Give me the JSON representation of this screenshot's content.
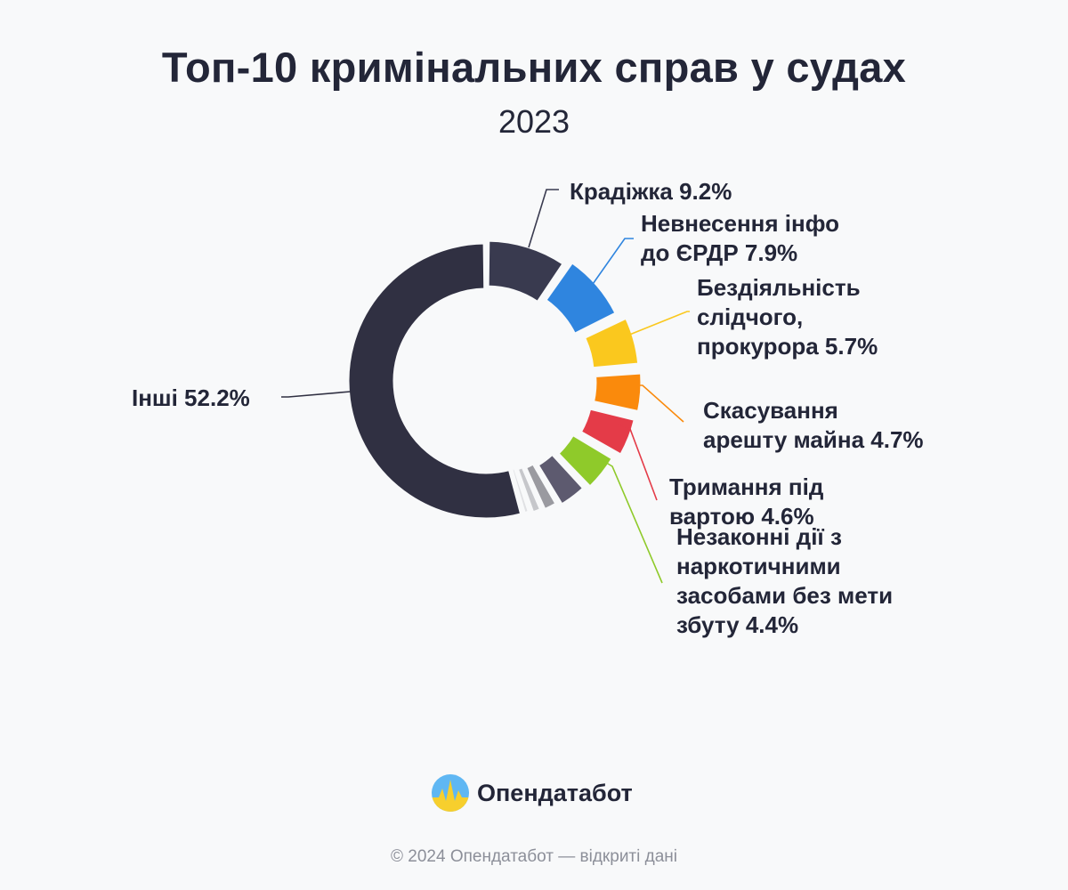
{
  "header": {
    "title": "Топ-10 кримінальних справ у судах",
    "subtitle": "2023"
  },
  "chart_data": {
    "type": "pie",
    "donut": true,
    "title": "Топ-10 кримінальних справ у судах",
    "subtitle": "2023",
    "slices": [
      {
        "label": "Крадіжка",
        "value": 9.2,
        "color": "#393a4f",
        "label_lines": [
          "Крадіжка 9.2%"
        ]
      },
      {
        "label": "Невнесення інфо до ЄРДР",
        "value": 7.9,
        "color": "#2f85df",
        "label_lines": [
          "Невнесення інфо",
          "до ЄРДР 7.9%"
        ]
      },
      {
        "label": "Бездіяльність слідчого, прокурора",
        "value": 5.7,
        "color": "#fac81e",
        "label_lines": [
          "Бездіяльність",
          "слідчого,",
          "прокурора 5.7%"
        ]
      },
      {
        "label": "Скасування арешту майна",
        "value": 4.7,
        "color": "#fa8a0c",
        "label_lines": [
          "Скасування",
          "арешту майна 4.7%"
        ]
      },
      {
        "label": "Тримання під вартою",
        "value": 4.6,
        "color": "#e43b48",
        "label_lines": [
          "Тримання під",
          "вартою 4.6%"
        ]
      },
      {
        "label": "Незаконні дії з наркотичними засобами без мети збуту",
        "value": 4.4,
        "color": "#8fca2a",
        "label_lines": [
          "Незаконні дії з",
          "наркотичними",
          "засобами без мети",
          "збуту 4.4%"
        ]
      },
      {
        "label": "",
        "value": 3.4,
        "color": "#5d5a6f",
        "label_lines": []
      },
      {
        "label": "",
        "value": 1.8,
        "color": "#9a9aa0",
        "label_lines": []
      },
      {
        "label": "",
        "value": 1.3,
        "color": "#c6c7cb",
        "label_lines": []
      },
      {
        "label": "",
        "value": 0.9,
        "color": "#e0e1e4",
        "label_lines": []
      },
      {
        "label": "Інші",
        "value": 52.2,
        "color": "#303042",
        "label_lines": [
          "Інші 52.2%"
        ]
      }
    ]
  },
  "brand": {
    "name": "Опендатабот",
    "logo_icon": "sun-over-wave-logo",
    "colors": {
      "sky": "#5fb7f3",
      "sun": "#f7cf2d"
    }
  },
  "footer": {
    "text": "© 2024 Опендатабот — відкриті дані"
  }
}
